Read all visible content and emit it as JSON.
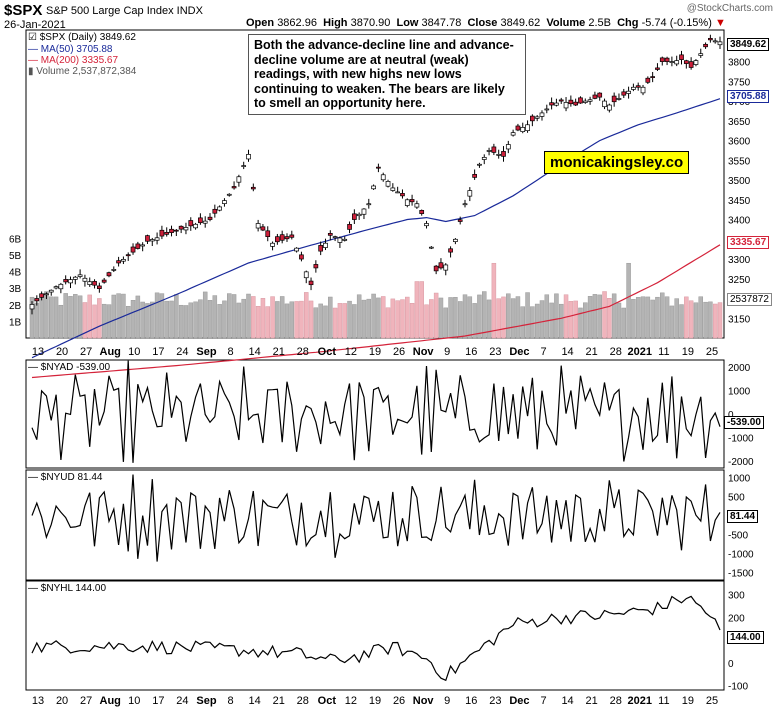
{
  "header": {
    "symbol": "$SPX",
    "index_name": "S&P 500 Large Cap Index INDX",
    "date": "26-Jan-2021",
    "open_label": "Open",
    "open": "3862.96",
    "high_label": "High",
    "high": "3870.90",
    "low_label": "Low",
    "low": "3847.78",
    "close_label": "Close",
    "close": "3849.62",
    "volume_label": "Volume",
    "volume": "2.5B",
    "chg_label": "Chg",
    "chg": "-5.74 (-0.15%)",
    "credit": "@StockCharts.com"
  },
  "annotation": "Both the advance-decline line and advance-decline volume are at neutral (weak) readings, with new highs new lows continuing to weaken. The bears are likely to smell an opportunity here.",
  "brand": "monicakingsley.co",
  "colors": {
    "up": "#ffffff",
    "down": "#cc1f3a",
    "ma50": "#1a2a9a",
    "ma200": "#d4233a",
    "vol_up": "#b4b4b4",
    "vol_down": "#f0b4bc",
    "line": "#000000"
  },
  "legend": {
    "price": "$SPX (Daily) 3849.62",
    "ma50": "MA(50) 3705.88",
    "ma200": "MA(200) 3335.67",
    "volume": "Volume 2,537,872,384"
  },
  "price_tags": {
    "close": "3849.62",
    "ma50": "3705.88",
    "ma200": "3335.67",
    "volume": "2537872"
  },
  "x_labels": [
    "13",
    "20",
    "27",
    "Aug",
    "10",
    "17",
    "24",
    "Sep",
    "8",
    "14",
    "21",
    "28",
    "Oct",
    "12",
    "19",
    "26",
    "Nov",
    "9",
    "16",
    "23",
    "Dec",
    "7",
    "14",
    "21",
    "28",
    "2021",
    "11",
    "19",
    "25"
  ],
  "panels": {
    "nyad": {
      "label": "$NYAD -539.00",
      "tag": "-539.00",
      "ticks": [
        "2000",
        "1000",
        "0",
        "-1000",
        "-2000"
      ]
    },
    "nyud": {
      "label": "$NYUD 81.44",
      "tag": "81.44",
      "ticks": [
        "1000",
        "500",
        "0",
        "-500",
        "-1000",
        "-1500"
      ]
    },
    "nyhl": {
      "label": "$NYHL 144.00",
      "tag": "144.00",
      "ticks": [
        "300",
        "200",
        "100",
        "0",
        "-100"
      ]
    }
  },
  "chart_data": [
    {
      "type": "candlestick",
      "title": "$SPX S&P 500 Large Cap Index INDX",
      "series": [
        {
          "name": "$SPX (Daily)"
        },
        {
          "name": "MA(50)"
        },
        {
          "name": "MA(200)"
        },
        {
          "name": "Volume"
        }
      ],
      "x_range": [
        "2020-07-10",
        "2021-01-26"
      ],
      "ylim": [
        3100,
        3880
      ],
      "y_ticks": [
        3150,
        3200,
        3250,
        3300,
        3350,
        3400,
        3450,
        3500,
        3550,
        3600,
        3650,
        3700,
        3750,
        3800
      ],
      "volume_ticks": [
        "1B",
        "2B",
        "3B",
        "4B",
        "5B",
        "6B"
      ],
      "last": {
        "close": 3849.62,
        "ma50": 3705.88,
        "ma200": 3335.67,
        "volume": 2537872384
      },
      "close_waypoints": [
        [
          0,
          3185
        ],
        [
          5,
          3230
        ],
        [
          10,
          3260
        ],
        [
          14,
          3225
        ],
        [
          18,
          3290
        ],
        [
          24,
          3345
        ],
        [
          32,
          3380
        ],
        [
          37,
          3400
        ],
        [
          42,
          3480
        ],
        [
          45,
          3565
        ],
        [
          47,
          3390
        ],
        [
          50,
          3340
        ],
        [
          54,
          3355
        ],
        [
          56,
          3300
        ],
        [
          58,
          3235
        ],
        [
          60,
          3320
        ],
        [
          62,
          3360
        ],
        [
          65,
          3350
        ],
        [
          67,
          3400
        ],
        [
          70,
          3440
        ],
        [
          72,
          3530
        ],
        [
          75,
          3480
        ],
        [
          78,
          3450
        ],
        [
          80,
          3440
        ],
        [
          82,
          3390
        ],
        [
          84,
          3270
        ],
        [
          86,
          3285
        ],
        [
          88,
          3350
        ],
        [
          90,
          3440
        ],
        [
          93,
          3540
        ],
        [
          95,
          3575
        ],
        [
          98,
          3560
        ],
        [
          100,
          3620
        ],
        [
          103,
          3640
        ],
        [
          106,
          3670
        ],
        [
          108,
          3690
        ],
        [
          110,
          3700
        ],
        [
          113,
          3690
        ],
        [
          115,
          3700
        ],
        [
          118,
          3710
        ],
        [
          120,
          3690
        ],
        [
          123,
          3715
        ],
        [
          125,
          3735
        ],
        [
          127,
          3735
        ],
        [
          129,
          3760
        ],
        [
          131,
          3800
        ],
        [
          133,
          3800
        ],
        [
          135,
          3805
        ],
        [
          137,
          3785
        ],
        [
          139,
          3820
        ],
        [
          141,
          3855
        ],
        [
          143,
          3850
        ]
      ],
      "ma50_waypoints": [
        [
          0,
          3050
        ],
        [
          14,
          3130
        ],
        [
          30,
          3210
        ],
        [
          45,
          3290
        ],
        [
          58,
          3335
        ],
        [
          70,
          3375
        ],
        [
          78,
          3400
        ],
        [
          82,
          3405
        ],
        [
          86,
          3395
        ],
        [
          92,
          3410
        ],
        [
          100,
          3460
        ],
        [
          110,
          3540
        ],
        [
          118,
          3600
        ],
        [
          126,
          3640
        ],
        [
          134,
          3670
        ],
        [
          143,
          3706
        ]
      ],
      "ma200_waypoints": [
        [
          0,
          3000
        ],
        [
          30,
          3030
        ],
        [
          60,
          3065
        ],
        [
          90,
          3105
        ],
        [
          110,
          3150
        ],
        [
          120,
          3180
        ],
        [
          130,
          3240
        ],
        [
          143,
          3336
        ]
      ]
    },
    {
      "type": "line",
      "title": "$NYAD -539.00",
      "ylim": [
        -2300,
        2300
      ],
      "y_ticks": [
        2000,
        1000,
        0,
        -1000,
        -2000
      ],
      "last": -539
    },
    {
      "type": "line",
      "title": "$NYUD 81.44",
      "ylim": [
        -1700,
        1200
      ],
      "y_ticks": [
        1000,
        500,
        0,
        -500,
        -1000,
        -1500
      ],
      "last": 81.44
    },
    {
      "type": "line",
      "title": "$NYHL 144.00",
      "ylim": [
        -120,
        360
      ],
      "y_ticks": [
        300,
        200,
        100,
        0,
        -100
      ],
      "last": 144
    }
  ]
}
